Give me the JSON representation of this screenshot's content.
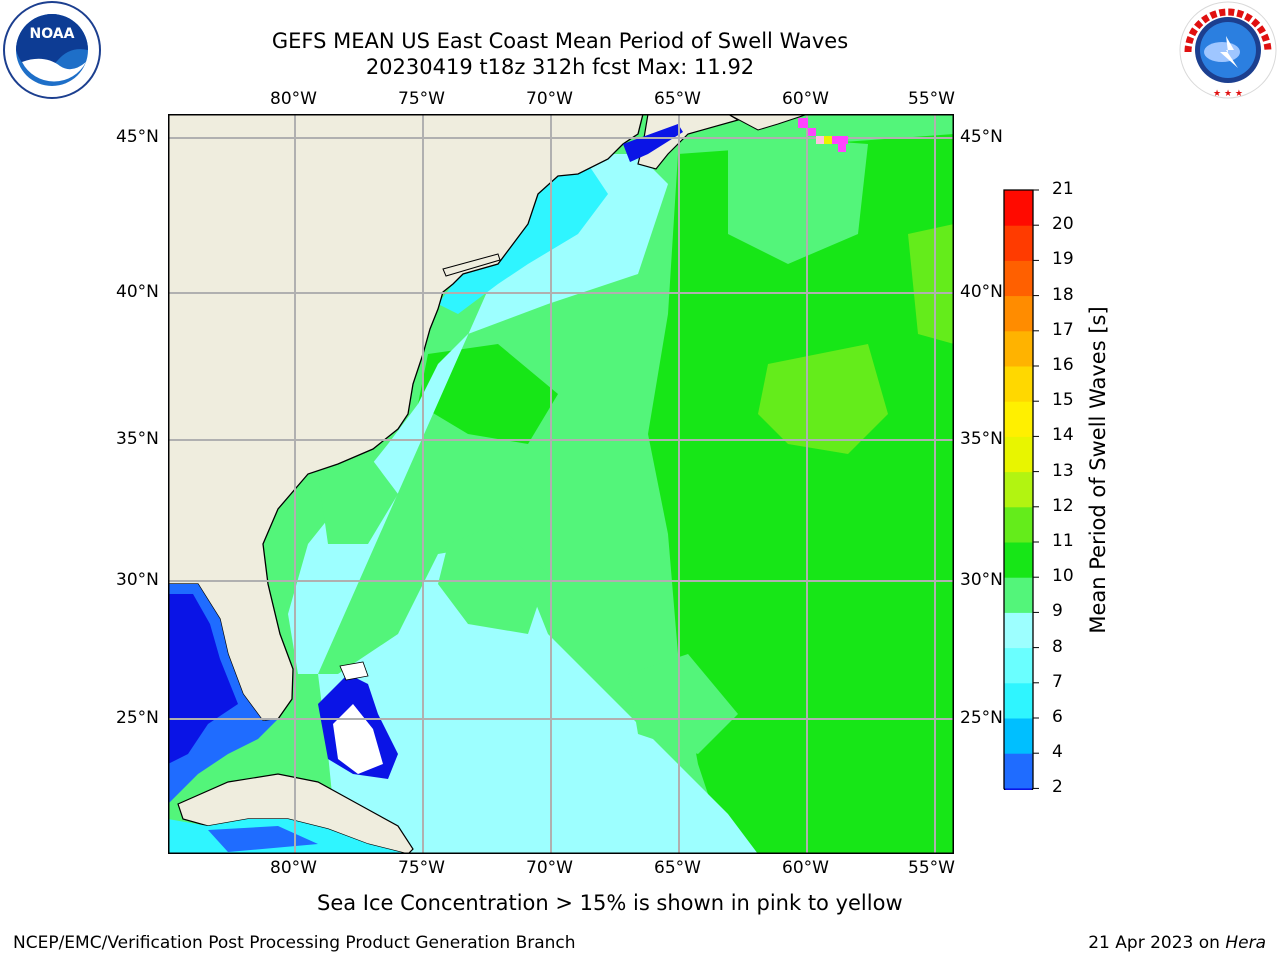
{
  "title": {
    "line1": "GEFS MEAN US East Coast Mean Period of Swell Waves",
    "line2": "20230419 t18z 312h fcst   Max: 11.92"
  },
  "map": {
    "lon_labels": [
      "80°W",
      "75°W",
      "70°W",
      "65°W",
      "60°W",
      "55°W"
    ],
    "lat_labels": [
      "45°N",
      "40°N",
      "35°N",
      "30°N",
      "25°N"
    ],
    "land_color": "#efedde",
    "grid_color": "#b0b0b0"
  },
  "colorbar": {
    "label": "Mean Period of Swell Waves [s]",
    "ticks": [
      "2",
      "4",
      "6",
      "7",
      "8",
      "9",
      "10",
      "11",
      "12",
      "13",
      "14",
      "15",
      "16",
      "17",
      "18",
      "19",
      "20",
      "21"
    ],
    "colors": [
      "#1f6cff",
      "#00bfff",
      "#2ff5ff",
      "#6affff",
      "#9dffff",
      "#53f57a",
      "#17e617",
      "#64ec1b",
      "#b2f411",
      "#e8f500",
      "#fff000",
      "#ffd800",
      "#ffb300",
      "#ff8c00",
      "#ff6000",
      "#ff3b00",
      "#ff0a00"
    ],
    "extend_color": "#0a14e6"
  },
  "legend_colors": {
    "ocean_dark": "#0a14e6",
    "ocean_blue": "#1f6cff",
    "ocean_cyan": "#2ff5ff",
    "ocean_light": "#9dffff",
    "light_green": "#53f57a",
    "green": "#17e617",
    "yellow_green": "#64ec1b",
    "ice_pink": "#ff44ff"
  },
  "caption": "Sea Ice Concentration > 15% is shown in pink to yellow",
  "footer": {
    "left": "NCEP/EMC/Verification Post Processing Product Generation Branch",
    "right_date": "21 Apr 2023 on ",
    "right_machine": "Hera"
  },
  "logos": {
    "noaa_text": "NOAA",
    "nws_top": "NATIONAL WEATHER SERVICE"
  }
}
